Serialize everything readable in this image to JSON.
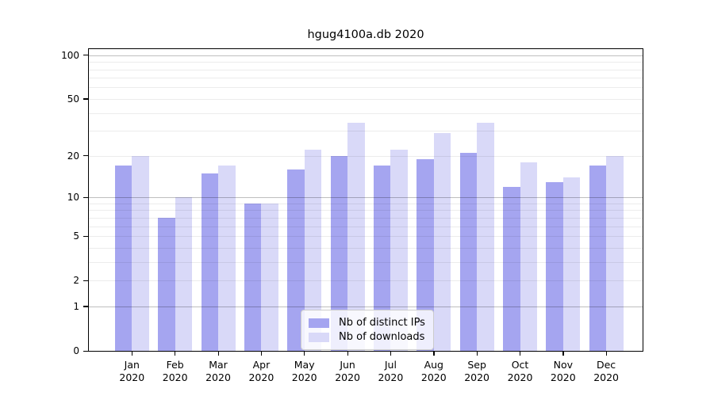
{
  "title": "hgug4100a.db 2020",
  "chart_data": {
    "type": "bar",
    "title": "hgug4100a.db 2020",
    "subtitle": "",
    "xlabel": "",
    "ylabel": "",
    "scale": "log1p",
    "ylim": [
      0,
      110
    ],
    "grid": true,
    "legend_position": "bottom-center",
    "categories": [
      "Jan",
      "Feb",
      "Mar",
      "Apr",
      "May",
      "Jun",
      "Jul",
      "Aug",
      "Sep",
      "Oct",
      "Nov",
      "Dec"
    ],
    "year_label": "2020",
    "yticks": [
      0,
      1,
      2,
      5,
      10,
      20,
      50,
      100
    ],
    "grid_major": [
      1,
      10,
      100
    ],
    "grid_minor": [
      2,
      3,
      4,
      5,
      6,
      7,
      8,
      9,
      20,
      30,
      40,
      50,
      60,
      70,
      80,
      90
    ],
    "series": [
      {
        "name": "Nb of distinct IPs",
        "color": "#a5a5f0",
        "values": [
          17,
          7,
          15,
          9,
          16,
          20,
          17,
          19,
          21,
          12,
          13,
          17
        ]
      },
      {
        "name": "Nb of downloads",
        "color": "#d9d9f8",
        "values": [
          20,
          10,
          17,
          9,
          22,
          34,
          22,
          29,
          34,
          18,
          14,
          20
        ]
      }
    ]
  }
}
